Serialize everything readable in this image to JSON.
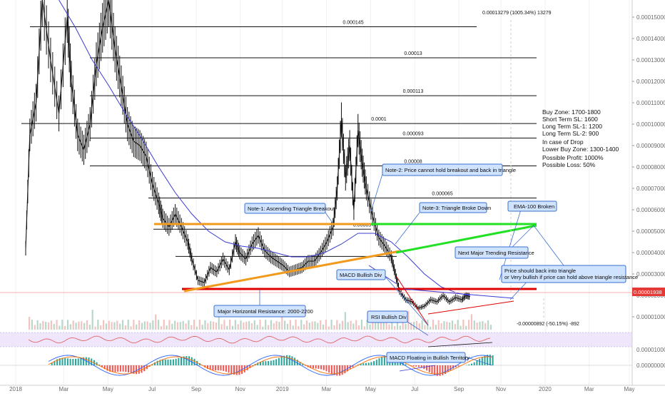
{
  "chart_data": {
    "type": "line",
    "title": "",
    "x_ticks": [
      "2018",
      "Mar",
      "May",
      "Jul",
      "Sep",
      "Nov",
      "2019",
      "Mar",
      "May",
      "Jul",
      "Sep",
      "Nov",
      "2020",
      "Mar",
      "May"
    ],
    "y_ticks": [
      "0.00015000",
      "0.00014000",
      "0.00013000",
      "0.00012000",
      "0.00011000",
      "0.00010000",
      "0.00009000",
      "0.00008000",
      "0.00007000",
      "0.00006000",
      "0.00005000",
      "0.00004000",
      "0.00003000",
      "0.00002000",
      "0.00001000"
    ],
    "ylim": [
      4e-06,
      0.000158
    ],
    "last_price": "0.00001938",
    "fib_levels": [
      {
        "label": "0.000145",
        "value": 0.0001455
      },
      {
        "label": "0.00013",
        "value": 0.000131
      },
      {
        "label": "0.000113",
        "value": 0.0001133
      },
      {
        "label": "0.0001",
        "value": 0.0001003
      },
      {
        "label": "0.000093",
        "value": 9.35e-05
      },
      {
        "label": "0.00008",
        "value": 8.05e-05
      },
      {
        "label": "0.000065",
        "value": 6.55e-05
      },
      {
        "label": "0.00005",
        "value": 5.09e-05
      },
      {
        "label": "",
        "value": 3.82e-05
      }
    ],
    "price_series": [
      {
        "x": 0.0,
        "y": 4.2e-05
      },
      {
        "x": 0.1,
        "y": 9.5e-05
      },
      {
        "x": 0.25,
        "y": 0.00011
      },
      {
        "x": 0.4,
        "y": 0.000158
      },
      {
        "x": 0.6,
        "y": 0.00013
      },
      {
        "x": 0.8,
        "y": 0.000105
      },
      {
        "x": 1.0,
        "y": 0.00015
      },
      {
        "x": 1.1,
        "y": 0.00012
      },
      {
        "x": 1.25,
        "y": 9.5e-05
      },
      {
        "x": 1.4,
        "y": 8.8e-05
      },
      {
        "x": 1.55,
        "y": 0.0001
      },
      {
        "x": 1.7,
        "y": 0.000128
      },
      {
        "x": 1.85,
        "y": 0.000145
      },
      {
        "x": 2.0,
        "y": 0.000158
      },
      {
        "x": 2.15,
        "y": 0.000135
      },
      {
        "x": 2.3,
        "y": 0.000118
      },
      {
        "x": 2.45,
        "y": 0.0001
      },
      {
        "x": 2.6,
        "y": 9.2e-05
      },
      {
        "x": 2.75,
        "y": 9e-05
      },
      {
        "x": 2.9,
        "y": 8.5e-05
      },
      {
        "x": 3.05,
        "y": 7.2e-05
      },
      {
        "x": 3.2,
        "y": 6.3e-05
      },
      {
        "x": 3.3,
        "y": 5.6e-05
      },
      {
        "x": 3.45,
        "y": 5.2e-05
      },
      {
        "x": 3.6,
        "y": 5.8e-05
      },
      {
        "x": 3.75,
        "y": 5.2e-05
      },
      {
        "x": 3.9,
        "y": 4.5e-05
      },
      {
        "x": 4.0,
        "y": 3.7e-05
      },
      {
        "x": 4.15,
        "y": 2.7e-05
      },
      {
        "x": 4.3,
        "y": 2.6e-05
      },
      {
        "x": 4.45,
        "y": 3.3e-05
      },
      {
        "x": 4.6,
        "y": 3.1e-05
      },
      {
        "x": 4.75,
        "y": 3.7e-05
      },
      {
        "x": 4.9,
        "y": 3.2e-05
      },
      {
        "x": 5.05,
        "y": 4.5e-05
      },
      {
        "x": 5.15,
        "y": 4e-05
      },
      {
        "x": 5.3,
        "y": 3.7e-05
      },
      {
        "x": 5.45,
        "y": 4.4e-05
      },
      {
        "x": 5.6,
        "y": 4.8e-05
      },
      {
        "x": 5.75,
        "y": 4.1e-05
      },
      {
        "x": 5.9,
        "y": 3.8e-05
      },
      {
        "x": 6.05,
        "y": 3.6e-05
      },
      {
        "x": 6.2,
        "y": 3.4e-05
      },
      {
        "x": 6.35,
        "y": 3.1e-05
      },
      {
        "x": 6.5,
        "y": 3.2e-05
      },
      {
        "x": 6.65,
        "y": 3.3e-05
      },
      {
        "x": 6.8,
        "y": 3.6e-05
      },
      {
        "x": 6.95,
        "y": 3.6e-05
      },
      {
        "x": 7.1,
        "y": 4e-05
      },
      {
        "x": 7.25,
        "y": 4.5e-05
      },
      {
        "x": 7.4,
        "y": 5.2e-05
      },
      {
        "x": 7.5,
        "y": 7e-05
      },
      {
        "x": 7.6,
        "y": 0.000102
      },
      {
        "x": 7.7,
        "y": 7.5e-05
      },
      {
        "x": 7.8,
        "y": 9e-05
      },
      {
        "x": 7.9,
        "y": 6e-05
      },
      {
        "x": 8.0,
        "y": 9.7e-05
      },
      {
        "x": 8.1,
        "y": 8.2e-05
      },
      {
        "x": 8.2,
        "y": 7e-05
      },
      {
        "x": 8.35,
        "y": 5.7e-05
      },
      {
        "x": 8.5,
        "y": 4.7e-05
      },
      {
        "x": 8.65,
        "y": 4.3e-05
      },
      {
        "x": 8.8,
        "y": 3.8e-05
      },
      {
        "x": 8.9,
        "y": 3e-05
      },
      {
        "x": 9.0,
        "y": 2.2e-05
      },
      {
        "x": 9.15,
        "y": 1.8e-05
      },
      {
        "x": 9.3,
        "y": 1.7e-05
      },
      {
        "x": 9.45,
        "y": 1.4e-05
      },
      {
        "x": 9.6,
        "y": 1.5e-05
      },
      {
        "x": 9.75,
        "y": 1.8e-05
      },
      {
        "x": 9.9,
        "y": 1.7e-05
      },
      {
        "x": 10.05,
        "y": 2e-05
      },
      {
        "x": 10.2,
        "y": 1.7e-05
      },
      {
        "x": 10.35,
        "y": 1.9e-05
      },
      {
        "x": 10.5,
        "y": 1.8e-05
      },
      {
        "x": 10.6,
        "y": 2e-05
      },
      {
        "x": 10.7,
        "y": 1.938e-05
      }
    ],
    "ema100": [
      {
        "x": 0.8,
        "y": 0.000158
      },
      {
        "x": 1.2,
        "y": 0.000145
      },
      {
        "x": 1.6,
        "y": 0.00013
      },
      {
        "x": 2.0,
        "y": 0.000118
      },
      {
        "x": 2.4,
        "y": 0.000105
      },
      {
        "x": 2.8,
        "y": 9.3e-05
      },
      {
        "x": 3.2,
        "y": 8e-05
      },
      {
        "x": 3.6,
        "y": 6.8e-05
      },
      {
        "x": 4.0,
        "y": 5.8e-05
      },
      {
        "x": 4.4,
        "y": 5e-05
      },
      {
        "x": 4.8,
        "y": 4.5e-05
      },
      {
        "x": 5.2,
        "y": 4.3e-05
      },
      {
        "x": 5.6,
        "y": 4.2e-05
      },
      {
        "x": 6.0,
        "y": 4e-05
      },
      {
        "x": 6.4,
        "y": 3.8e-05
      },
      {
        "x": 6.8,
        "y": 3.8e-05
      },
      {
        "x": 7.2,
        "y": 4e-05
      },
      {
        "x": 7.6,
        "y": 4.4e-05
      },
      {
        "x": 8.0,
        "y": 4.9e-05
      },
      {
        "x": 8.4,
        "y": 4.9e-05
      },
      {
        "x": 8.8,
        "y": 4.5e-05
      },
      {
        "x": 9.2,
        "y": 3.8e-05
      },
      {
        "x": 9.6,
        "y": 3e-05
      },
      {
        "x": 10.0,
        "y": 2.4e-05
      },
      {
        "x": 10.4,
        "y": 2.1e-05
      },
      {
        "x": 10.7,
        "y": 2e-05
      }
    ],
    "series": [
      {
        "name": "Price",
        "color": "#111111"
      },
      {
        "name": "EMA-100",
        "color": "#3b3bd6"
      }
    ]
  },
  "colors": {
    "horizontal_support": "#e00000",
    "orange_trend": "#f29a1b",
    "green_trend": "#22e022",
    "price_badge": "#e53935",
    "note_fill": "#cfe3ff",
    "note_border": "#3a6fd0"
  },
  "measure_top": "0.00013279 (1005.34%) 13279",
  "measure_bottom": "-0.00000892 (-50.15%) -892",
  "trade_plan": [
    "Buy Zone: 1700-1800",
    "Short Term SL: 1600",
    "Long Term SL-1: 1200",
    "Long Term SL-2: 900",
    "",
    "In case of Drop",
    "Lower Buy Zone: 1300-1400",
    "",
    "Possible Profit: 1000%",
    "Possible Loss: 50%"
  ],
  "notes": {
    "n1": "Note-1: Ascending Triangle Breakout",
    "n2": "Note-2: Price cannot hold breakout and back in triangle",
    "n3": "Note-3: Triangle Broke Down",
    "ema": "EMA-100 Broken",
    "next_res": "Next Major Trending Resistance",
    "price_should_1": "Price should back into triangle",
    "price_should_2": "or Very bullish if price can hold above triangle resistance",
    "macd_div": "MACD Bullish Div",
    "rsi_div": "RSI Bullish Div",
    "major_support": "Major Horizontal Resistance: 2000-2200",
    "macd_float": "MACD Floating in Bullish Territory"
  },
  "macd_axis": [
    "0.00001000",
    "0.00000000"
  ]
}
